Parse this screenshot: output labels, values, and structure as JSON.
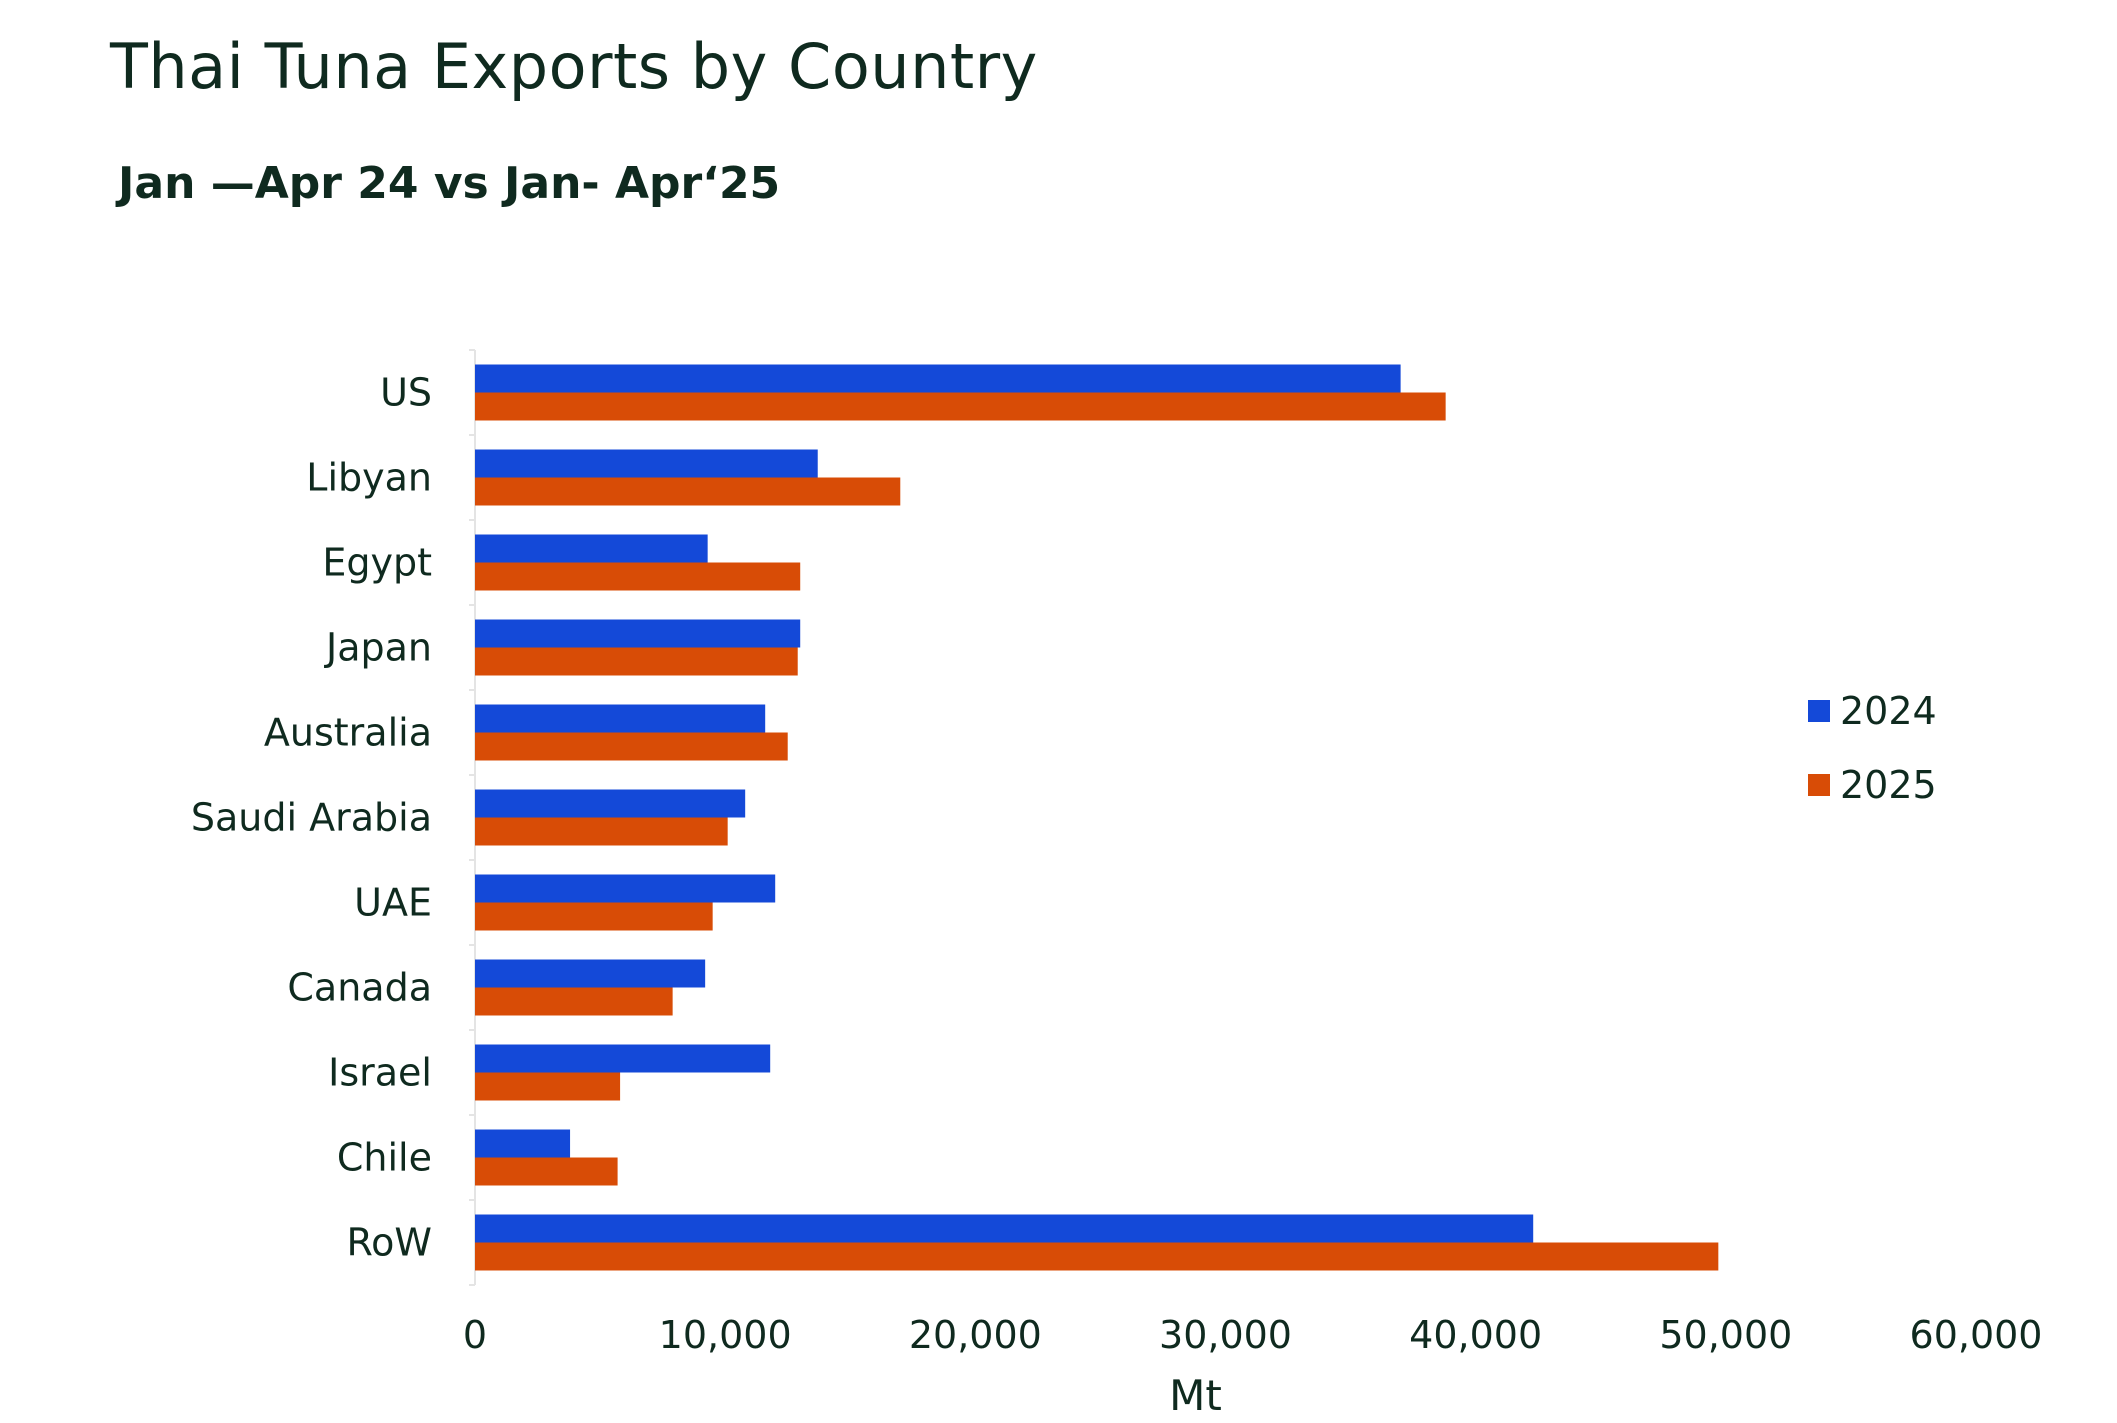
{
  "title": "Thai Tuna Exports by Country",
  "subtitle": "Jan —Apr 24 vs Jan- Apr‘25",
  "chart_data": {
    "type": "bar",
    "orientation": "horizontal",
    "title": "Thai Tuna Exports by Country",
    "subtitle": "Jan —Apr 24 vs Jan- Apr‘25",
    "xlabel": "Mt",
    "ylabel": "",
    "xlim": [
      0,
      60000
    ],
    "x_ticks": [
      0,
      10000,
      20000,
      30000,
      40000,
      50000,
      60000
    ],
    "x_tick_labels": [
      "0",
      "10,000",
      "20,000",
      "30,000",
      "40,000",
      "50,000",
      "60,000"
    ],
    "categories": [
      "US",
      "Libyan",
      "Egypt",
      "Japan",
      "Australia",
      "Saudi Arabia",
      "UAE",
      "Canada",
      "Israel",
      "Chile",
      "RoW"
    ],
    "series": [
      {
        "name": "2024",
        "color": "#1449d8",
        "values": [
          37000,
          13700,
          9300,
          13000,
          11600,
          10800,
          12000,
          9200,
          11800,
          3800,
          42300
        ]
      },
      {
        "name": "2025",
        "color": "#d84c06",
        "values": [
          38800,
          17000,
          13000,
          12900,
          12500,
          10100,
          9500,
          7900,
          5800,
          5700,
          49700
        ]
      }
    ],
    "legend_position": "right",
    "grid": false
  }
}
